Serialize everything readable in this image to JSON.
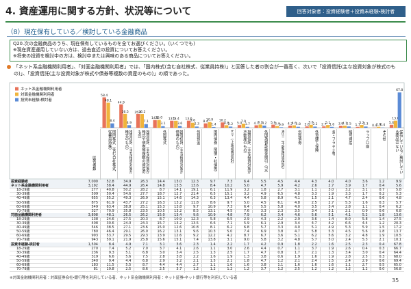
{
  "header": {
    "title": "4. 資産運用に関する方針、状況等について",
    "badge": "回答対象者：投資経験者＋投資未経験・検討者",
    "subtitle": "（8）現在保有している／検討している金融商品"
  },
  "question": {
    "text": "Q20.次の金融商品のうち、現在保有しているものを全てお選びください。(いくつでも)",
    "notes": [
      "※現在資産運用していない方は、過去直近の投資についてお答えください。",
      "※将来の投資を検討中の方は、検討中または興味のある商品についてお答えください。"
    ]
  },
  "summary": "「ネット系金融機関利用者」、「対面金融機関利用者」では、「国内株式(含む自社株式、従業員持株)」と回答した者の割合が一番高く、次いで「投資信託(主な投資対象が株式のもの)」、「投資信託(主な投資対象が株式や債券等複数の資産のもの)」の順であった。",
  "chart_data": {
    "type": "bar",
    "legend": "upper left",
    "ylim": [
      0,
      80
    ],
    "categories": [
      "国内株式（含む自社株式、従業員持株）",
      "投資信託（主な投資対象が株式のもの）",
      "投資信託（主な投資対象が株式や債券等複数の資産のもの）",
      "外国株式",
      "投資信託（主な投資対象が債券のもの）",
      "外貨預金",
      "国内債券（国債・社債等）",
      "ETF（上場投資信託）",
      "投資信託（主な投資対象が不動産のもの）",
      "外国為替証拠金取引（FX）",
      "REIT（不動産投資信託）",
      "外国債券",
      "外貨建て保険",
      "金・プラチナ等",
      "暗号資産",
      "ラップ口座",
      "その他",
      "保有している／検討している商品はない"
    ],
    "series": [
      {
        "name": "ネット系金融機関利用者",
        "color": "#e8735a",
        "values": [
          58.4,
          44.9,
          26.4,
          14.8,
          13.5,
          13.6,
          8.4,
          10.2,
          5.0,
          4.7,
          5.9,
          4.2,
          2.6,
          2.7,
          3.9,
          1.7,
          0.4,
          5.6
        ],
        "value_labels": [
          "58.4",
          "44.9",
          "26.4",
          "14.8",
          "13.5",
          "13.6",
          "8.4",
          "10.2",
          "5.0",
          "4.7",
          "5.9",
          "4.2",
          "2.6",
          "2.7",
          "3.9",
          "1.7",
          "0.4",
          "5.6"
        ]
      },
      {
        "name": "対面金融機関利用者",
        "color": "#f0b43c",
        "values": [
          48.1,
          26.5,
          26.2,
          15.0,
          13.4,
          9.6,
          10.9,
          4.8,
          7.9,
          6.2,
          3.4,
          4.6,
          5.6,
          5.1,
          4.1,
          5.2,
          1.8,
          13.6
        ],
        "value_labels": [
          "48.1",
          "26.5",
          "26.2",
          "15.0",
          "13.4",
          "9.6",
          "10.9",
          "4.8",
          "7.9",
          "6.2",
          "3.4",
          "4.6",
          "5.6",
          "5.1",
          "4.1",
          "5.2",
          "1.8",
          "13.6"
        ]
      },
      {
        "name": "投資未経験・検討者",
        "color": "#5b8bd6",
        "values": [
          8.4,
          4.9,
          7.1,
          3.1,
          3.6,
          2.3,
          1.4,
          2.2,
          1.7,
          4.2,
          0.9,
          1.8,
          2.2,
          1.6,
          2.5,
          2.3,
          0.4,
          67.8
        ],
        "value_labels": [
          "8.4",
          "4.9",
          "7.1",
          "3.1",
          "3.6",
          "2.3",
          "1.4",
          "2.2",
          "1.7",
          "4.2",
          "0.9",
          "1.8",
          "2.2",
          "1.6",
          "2.5",
          "2.3",
          "0.4",
          "67.8"
        ]
      }
    ]
  },
  "table": {
    "n_header": "回答者数",
    "rows": [
      {
        "label": "投資経験者",
        "n": "7,000",
        "values": [
          "52.8",
          "34.9",
          "26.3",
          "14.4",
          "13.0",
          "12.3",
          "9.7",
          "7.3",
          "6.4",
          "5.5",
          "4.5",
          "4.4",
          "4.3",
          "4.0",
          "4.0",
          "3.6",
          "1.2",
          "9.9"
        ]
      },
      {
        "label": "ネット系金融機関利用者",
        "n": "3,192",
        "values": [
          "58.4",
          "44.9",
          "26.4",
          "14.8",
          "13.5",
          "13.6",
          "8.4",
          "10.2",
          "5.0",
          "4.7",
          "5.9",
          "4.2",
          "2.6",
          "2.7",
          "3.9",
          "1.7",
          "0.4",
          "5.6"
        ]
      },
      {
        "label": "18-29歳",
        "n": "277",
        "values": [
          "40.8",
          "50.2",
          "28.2",
          "8.7",
          "14.1",
          "19.1",
          "6.1",
          "11.9",
          "3.2",
          "1.8",
          "2.7",
          "3.1",
          "1.1",
          "3.0",
          "3.2",
          "3.1",
          "0.7",
          "5.8"
        ]
      },
      {
        "label": "30-39歳",
        "n": "509",
        "values": [
          "50.4",
          "54.6",
          "27.7",
          "18.7",
          "12.7",
          "21.4",
          "6.5",
          "15.1",
          "3.2",
          "4.9",
          "6.5",
          "4.8",
          "3.3",
          "1.9",
          "3.3",
          "1.7",
          "0.2",
          "5.3"
        ]
      },
      {
        "label": "40-49歳",
        "n": "655",
        "values": [
          "55.2",
          "49.3",
          "26.9",
          "15.1",
          "14.6",
          "14.3",
          "6.3",
          "13.4",
          "4.4",
          "5.8",
          "8.9",
          "4.1",
          "1.5",
          "2.1",
          "4.7",
          "2.4",
          "0.6",
          "4.8"
        ]
      },
      {
        "label": "50-59歳",
        "n": "875",
        "values": [
          "61.9",
          "43.7",
          "27.2",
          "16.3",
          "13.2",
          "11.8",
          "8.6",
          "9.7",
          "5.0",
          "4.5",
          "6.1",
          "4.8",
          "2.5",
          "2.7",
          "5.3",
          "1.6",
          "0.3",
          "5.7"
        ]
      },
      {
        "label": "60-69歳",
        "n": "549",
        "values": [
          "63.4",
          "38.8",
          "25.1",
          "15.3",
          "13.8",
          "9.7",
          "10.9",
          "7.3",
          "6.4",
          "5.5",
          "5.8",
          "4.0",
          "3.5",
          "3.4",
          "2.8",
          "1.1",
          "0.4",
          "6.2"
        ]
      },
      {
        "label": "70-79歳",
        "n": "327",
        "values": [
          "70.9",
          "35.8",
          "23.5",
          "10.5",
          "13.2",
          "8.5",
          "13.1",
          "4.5",
          "7.6",
          "3.3",
          "2.3",
          "3.5",
          "3.4",
          "3.1",
          "2.1",
          "0.9",
          "0.6",
          "6.8"
        ]
      },
      {
        "label": "対面金融機関利用者",
        "n": "3,808",
        "values": [
          "48.1",
          "26.5",
          "26.2",
          "15.0",
          "13.4",
          "9.6",
          "10.9",
          "4.8",
          "7.9",
          "6.2",
          "3.4",
          "4.6",
          "5.6",
          "5.1",
          "4.1",
          "5.2",
          "1.8",
          "13.6"
        ]
      },
      {
        "label": "18-29歳",
        "n": "138",
        "values": [
          "24.6",
          "27.5",
          "20.3",
          "8.7",
          "10.9",
          "12.3",
          "5.8",
          "6.5",
          "2.9",
          "4.3",
          "2.2",
          "2.9",
          "3.6",
          "1.4",
          "8.0",
          "5.8",
          "1.4",
          "27.5"
        ]
      },
      {
        "label": "30-39歳",
        "n": "408",
        "values": [
          "30.6",
          "24.0",
          "24.3",
          "15.7",
          "13.2",
          "13.5",
          "6.6",
          "7.1",
          "5.9",
          "6.1",
          "2.9",
          "3.4",
          "4.7",
          "4.2",
          "6.6",
          "4.4",
          "1.2",
          "20.3"
        ]
      },
      {
        "label": "40-49歳",
        "n": "546",
        "values": [
          "38.5",
          "27.1",
          "23.6",
          "15.0",
          "12.6",
          "10.8",
          "8.1",
          "6.2",
          "6.8",
          "5.7",
          "3.3",
          "4.0",
          "5.1",
          "4.9",
          "5.3",
          "5.9",
          "1.5",
          "17.2"
        ]
      },
      {
        "label": "50-59歳",
        "n": "780",
        "values": [
          "46.4",
          "29.1",
          "26.0",
          "16.2",
          "13.1",
          "9.6",
          "10.3",
          "5.0",
          "7.4",
          "6.9",
          "3.8",
          "4.7",
          "5.8",
          "5.3",
          "4.5",
          "5.6",
          "1.8",
          "13.7"
        ]
      },
      {
        "label": "60-69歳",
        "n": "993",
        "values": [
          "53.7",
          "29.5",
          "29.3",
          "13.9",
          "12.6",
          "9.2",
          "12.2",
          "4.2",
          "8.7",
          "6.7",
          "3.6",
          "5.1",
          "6.2",
          "5.6",
          "3.2",
          "4.8",
          "1.9",
          "10.5"
        ]
      },
      {
        "label": "70-79歳",
        "n": "943",
        "values": [
          "59.1",
          "21.9",
          "25.8",
          "15.6",
          "15.1",
          "7.4",
          "13.8",
          "3.1",
          "9.0",
          "5.8",
          "3.2",
          "4.8",
          "5.7",
          "5.0",
          "2.4",
          "5.3",
          "2.1",
          "10.1"
        ]
      },
      {
        "label": "投資未経験・検討者",
        "n": "1,504",
        "values": [
          "8.4",
          "4.9",
          "7.1",
          "3.1",
          "3.6",
          "2.3",
          "1.4",
          "2.2",
          "1.7",
          "4.2",
          "0.9",
          "1.8",
          "2.2",
          "1.6",
          "2.5",
          "2.3",
          "0.4",
          "67.8"
        ]
      },
      {
        "label": "18-29歳",
        "n": "270",
        "values": [
          "7.4",
          "5.2",
          "7.0",
          "3.7",
          "4.1",
          "2.6",
          "1.1",
          "3.0",
          "2.6",
          "4.4",
          "0.7",
          "1.1",
          "3.7",
          "1.9",
          "2.6",
          "0.4",
          "0.3",
          "66.7"
        ]
      },
      {
        "label": "30-39歳",
        "n": "236",
        "values": [
          "9.3",
          "5.1",
          "6.8",
          "3.0",
          "3.4",
          "2.5",
          "1.3",
          "2.5",
          "1.7",
          "4.7",
          "0.8",
          "1.7",
          "2.1",
          "1.3",
          "3.4",
          "3.0",
          "0.4",
          "64.4"
        ]
      },
      {
        "label": "40-49歳",
        "n": "319",
        "values": [
          "6.6",
          "5.6",
          "7.5",
          "2.8",
          "3.8",
          "2.2",
          "1.6",
          "1.9",
          "1.3",
          "3.8",
          "0.6",
          "1.9",
          "1.6",
          "1.9",
          "2.8",
          "2.5",
          "0.3",
          "68.0"
        ]
      },
      {
        "label": "50-59歳",
        "n": "340",
        "values": [
          "9.4",
          "4.4",
          "6.8",
          "2.9",
          "3.2",
          "2.1",
          "1.5",
          "2.1",
          "1.8",
          "4.7",
          "1.2",
          "2.1",
          "2.4",
          "1.5",
          "2.4",
          "2.9",
          "0.6",
          "69.4"
        ]
      },
      {
        "label": "60-69歳",
        "n": "183",
        "values": [
          "11.5",
          "5.5",
          "8.7",
          "4.4",
          "4.4",
          "2.7",
          "1.1",
          "1.6",
          "1.6",
          "3.8",
          "1.1",
          "1.6",
          "1.6",
          "1.6",
          "1.1",
          "2.7",
          "0.5",
          "65.0"
        ]
      },
      {
        "label": "70-79歳",
        "n": "81",
        "values": [
          "19.8",
          "2.5",
          "8.6",
          "2.5",
          "3.7",
          "1.2",
          "1.2",
          "1.2",
          "1.2",
          "3.7",
          "1.2",
          "2.5",
          "1.2",
          "1.2",
          "1.2",
          "1.2",
          "0.0",
          "56.8"
        ]
      }
    ]
  },
  "footnote": "※対面金融機関利用者：対面証券会社・銀行等を利用している者、ネット系金融機関利用者：ネット証券・ネット銀行等を利用している者",
  "page_number": "35"
}
